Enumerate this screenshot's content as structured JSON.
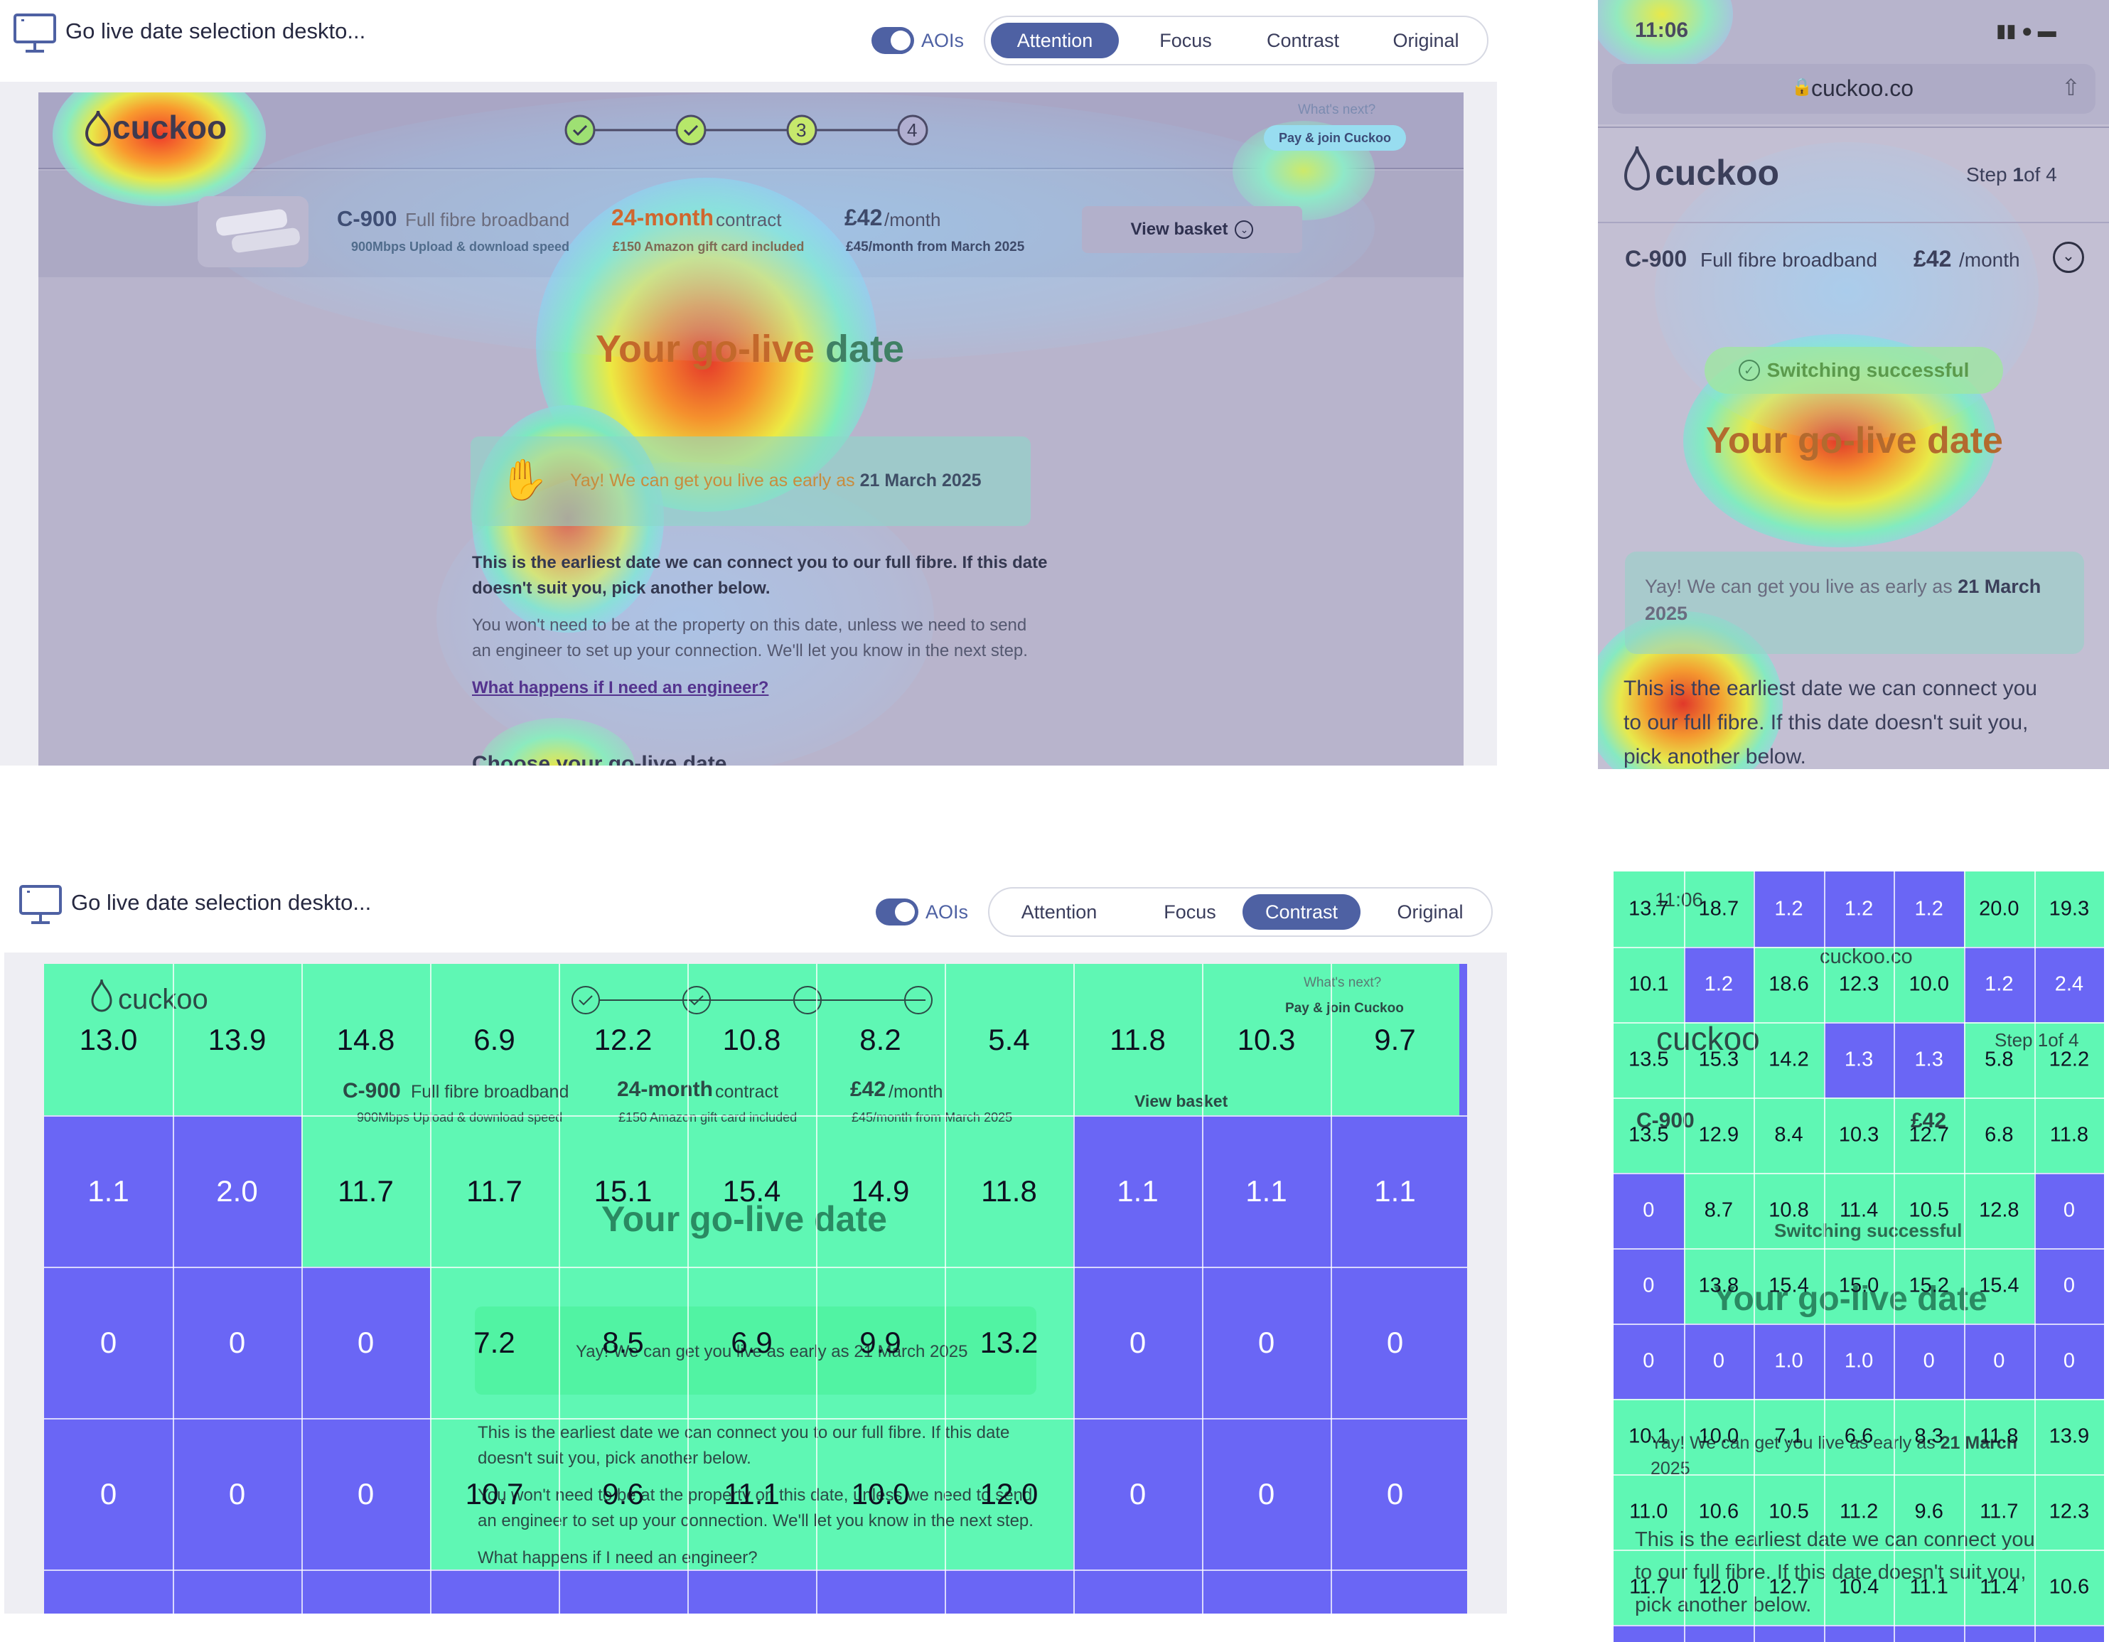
{
  "header_top": {
    "title": "Go live date selection deskto...",
    "aoi_label": "AOIs",
    "modes": [
      "Attention",
      "Focus",
      "Contrast",
      "Original"
    ],
    "active": "Attention"
  },
  "header_bottom": {
    "title": "Go live date selection deskto...",
    "aoi_label": "AOIs",
    "modes": [
      "Attention",
      "Focus",
      "Contrast",
      "Original"
    ],
    "active": "Contrast"
  },
  "desktop": {
    "brand": "cuckoo",
    "whats_next": "What's next?",
    "pay_join": "Pay & join Cuckoo",
    "steps": [
      "3",
      "4"
    ],
    "product_name": "C-900",
    "product_desc": "Full fibre broadband",
    "product_speed": "900Mbps Upload & download speed",
    "contract_bold": "24-month",
    "contract_text": "contract",
    "contract_sub": "£150 Amazon gift card included",
    "price_bold": "£42",
    "price_text": "/month",
    "price_sub": "£45/month from March 2025",
    "view_basket": "View basket",
    "heading_a": "Your go-live",
    "heading_b": "date",
    "yay_text": "Yay! We can get you live as early as",
    "yay_date": "21 March 2025",
    "para1": "This is the earliest date we can connect you to our full fibre. If this date",
    "para1b": "doesn't suit you, pick another below.",
    "para2": "You won't need to be at the property on this date, unless we need to send",
    "para2b": "an engineer to set up your connection. We'll let you know in the next step.",
    "engineer_link": "What happens if I need an engineer?",
    "choose": "Choose your go-live date"
  },
  "mobile": {
    "time": "11:06",
    "url": "cuckoo.co",
    "brand": "cuckoo",
    "step_pre": "Step",
    "step_num": "1",
    "step_post": "of 4",
    "product_name": "C-900",
    "product_desc": "Full fibre broadband",
    "price_bold": "£42",
    "price_text": "/month",
    "switch_badge": "Switching successful",
    "heading": "Your go-live date",
    "yay_text": "Yay! We can get you live as early as",
    "yay_date_a": "21 March",
    "yay_date_b": "2025",
    "para1": "This is the earliest date we can connect you",
    "para2": "to our full fibre. If this date doesn't suit you,",
    "para3": "pick another below."
  },
  "contrast_desktop": [
    [
      "13.0",
      "13.9",
      "14.8",
      "6.9",
      "12.2",
      "10.8",
      "8.2",
      "5.4",
      "11.8",
      "10.3",
      "9.7"
    ],
    [
      "1.1",
      "2.0",
      "11.7",
      "11.7",
      "15.1",
      "15.4",
      "14.9",
      "11.8",
      "1.1",
      "1.1",
      "1.1"
    ],
    [
      "0",
      "0",
      "0",
      "7.2",
      "8.5",
      "6.9",
      "9.9",
      "13.2",
      "0",
      "0",
      "0"
    ],
    [
      "0",
      "0",
      "0",
      "10.7",
      "9.6",
      "11.1",
      "10.0",
      "12.0",
      "0",
      "0",
      "0"
    ]
  ],
  "contrast_mobile": [
    [
      "13.7",
      "18.7",
      "1.2",
      "1.2",
      "1.2",
      "20.0",
      "19.3"
    ],
    [
      "10.1",
      "1.2",
      "18.6",
      "12.3",
      "10.0",
      "1.2",
      "2.4"
    ],
    [
      "13.5",
      "15.3",
      "14.2",
      "1.3",
      "1.3",
      "5.8",
      "12.2"
    ],
    [
      "13.5",
      "12.9",
      "8.4",
      "10.3",
      "12.7",
      "6.8",
      "11.8"
    ],
    [
      "0",
      "8.7",
      "10.8",
      "11.4",
      "10.5",
      "12.8",
      "0"
    ],
    [
      "0",
      "13.8",
      "15.4",
      "15.0",
      "15.2",
      "15.4",
      "0"
    ],
    [
      "0",
      "0",
      "1.0",
      "1.0",
      "0",
      "0",
      "0"
    ],
    [
      "10.1",
      "10.0",
      "7.1",
      "6.6",
      "8.3",
      "11.8",
      "13.9"
    ],
    [
      "11.0",
      "10.6",
      "10.5",
      "11.2",
      "9.6",
      "11.7",
      "12.3"
    ],
    [
      "11.7",
      "12.0",
      "12.7",
      "10.4",
      "11.1",
      "11.4",
      "10.6"
    ]
  ],
  "colors": {
    "accent": "#4e61a3",
    "low": "#6a66f5",
    "high": "#5ff7b4"
  }
}
